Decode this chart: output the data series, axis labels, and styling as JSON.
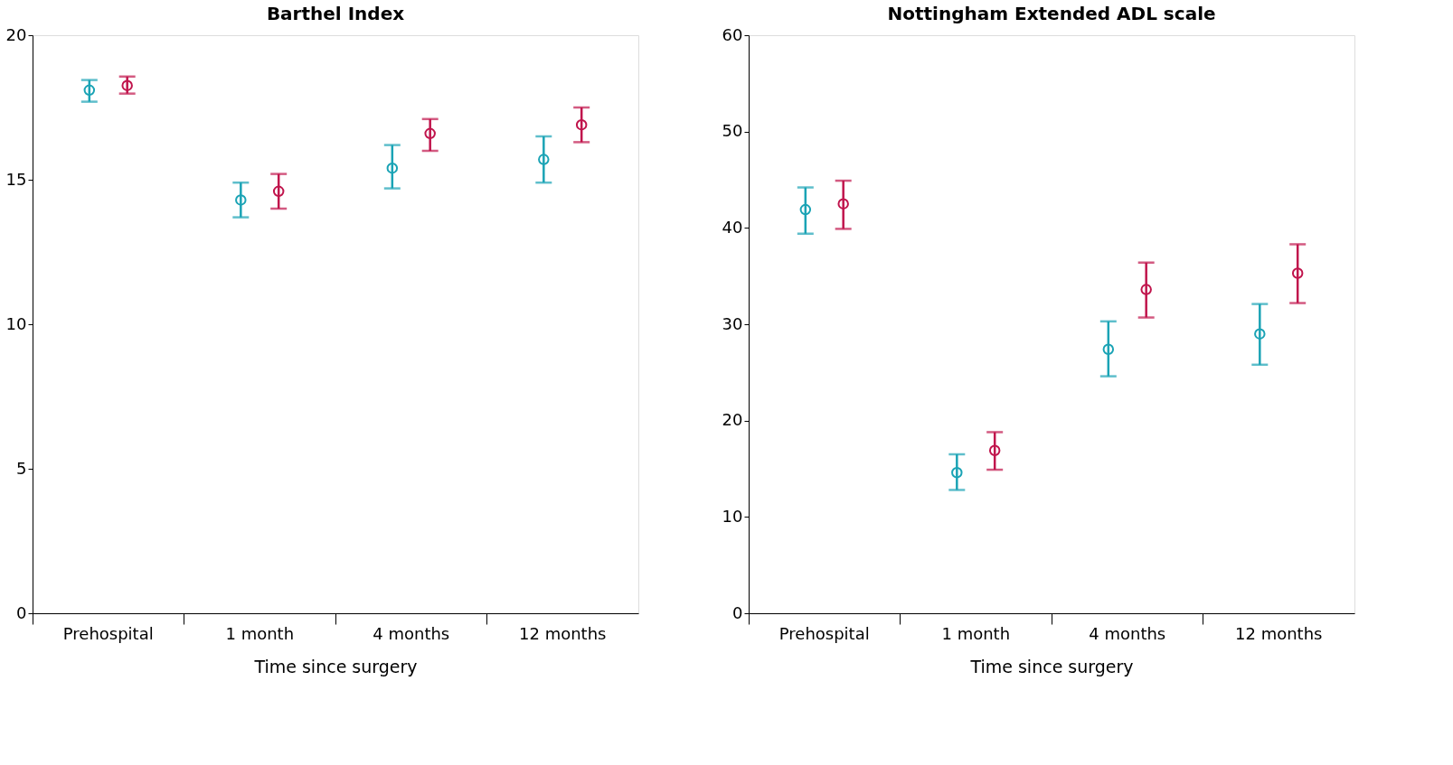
{
  "chart_data": [
    {
      "type": "scatter",
      "title": "Barthel Index",
      "xlabel": "Time since surgery",
      "categories": [
        "Prehospital",
        "1 month",
        "4 months",
        "12 months"
      ],
      "ylim": [
        0,
        20
      ],
      "yticks": [
        0,
        5,
        10,
        15,
        20
      ],
      "grid": false,
      "marker": "circle",
      "series": [
        {
          "color": "#1aa3b5",
          "values": [
            18.1,
            14.3,
            15.4,
            15.7
          ],
          "errors": [
            [
              17.7,
              18.45
            ],
            [
              13.7,
              14.9
            ],
            [
              14.7,
              16.2
            ],
            [
              14.9,
              16.5
            ]
          ]
        },
        {
          "color": "#c0144c",
          "values": [
            18.26,
            14.6,
            16.6,
            16.9
          ],
          "errors": [
            [
              17.98,
              18.57
            ],
            [
              14.0,
              15.2
            ],
            [
              16.0,
              17.1
            ],
            [
              16.3,
              17.5
            ]
          ]
        }
      ]
    },
    {
      "type": "scatter",
      "title": "Nottingham Extended ADL scale",
      "xlabel": "Time since surgery",
      "categories": [
        "Prehospital",
        "1 month",
        "4 months",
        "12 months"
      ],
      "ylim": [
        0,
        60
      ],
      "yticks": [
        0,
        10,
        20,
        30,
        40,
        50,
        60
      ],
      "grid": false,
      "marker": "circle",
      "series": [
        {
          "color": "#1aa3b5",
          "values": [
            41.9,
            14.6,
            27.4,
            29.0
          ],
          "errors": [
            [
              39.4,
              44.2
            ],
            [
              12.8,
              16.5
            ],
            [
              24.6,
              30.3
            ],
            [
              25.8,
              32.1
            ]
          ]
        },
        {
          "color": "#c0144c",
          "values": [
            42.5,
            16.9,
            33.6,
            35.3
          ],
          "errors": [
            [
              39.9,
              44.9
            ],
            [
              14.9,
              18.8
            ],
            [
              30.7,
              36.4
            ],
            [
              32.2,
              38.3
            ]
          ]
        }
      ]
    }
  ]
}
